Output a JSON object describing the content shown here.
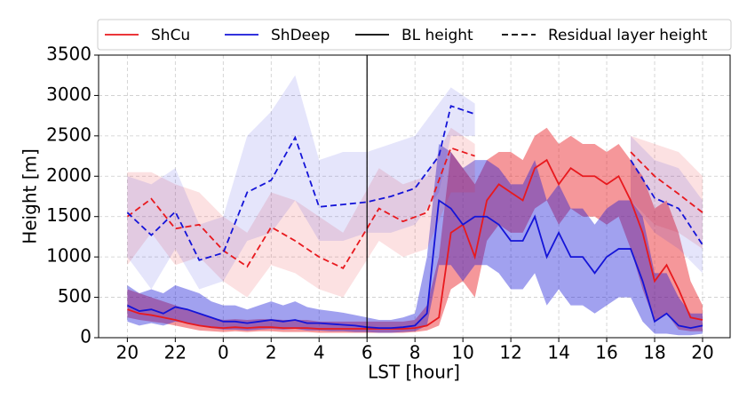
{
  "chart_data": {
    "type": "line",
    "xlabel": "LST [hour]",
    "ylabel": "Height [m]",
    "xlim": [
      18.8,
      45.15
    ],
    "ylim": [
      0,
      3500
    ],
    "xticks": [
      20,
      22,
      {
        "value": 24,
        "label": "0"
      },
      {
        "value": 26,
        "label": "2"
      },
      {
        "value": 28,
        "label": "4"
      },
      {
        "value": 30,
        "label": "6"
      },
      {
        "value": 32,
        "label": "8"
      },
      {
        "value": 34,
        "label": "10"
      },
      {
        "value": 36,
        "label": "12"
      },
      {
        "value": 38,
        "label": "14"
      },
      {
        "value": 40,
        "label": "16"
      },
      {
        "value": 42,
        "label": "18"
      },
      {
        "value": 44,
        "label": "20"
      }
    ],
    "yticks": [
      0,
      500,
      1000,
      1500,
      2000,
      2500,
      3000,
      3500
    ],
    "grid": true,
    "series": [
      {
        "name": "ShCu",
        "color": "#e8191e",
        "dash": false,
        "band_opacity": 0.45,
        "x": [
          20,
          20.5,
          21,
          21.5,
          22,
          22.5,
          23,
          23.5,
          24,
          24.5,
          25,
          25.5,
          26,
          26.5,
          27,
          27.5,
          28,
          28.5,
          29,
          29.5,
          30,
          30.5,
          31,
          31.5,
          32,
          32.5,
          33,
          33.5,
          34,
          34.5,
          35,
          35.5,
          36,
          36.5,
          37,
          37.5,
          38,
          38.5,
          39,
          39.5,
          40,
          40.5,
          41,
          41.5,
          42,
          42.5,
          43,
          43.5,
          44
        ],
        "values": [
          350,
          300,
          280,
          250,
          220,
          180,
          150,
          130,
          120,
          130,
          120,
          130,
          130,
          120,
          120,
          120,
          110,
          110,
          110,
          110,
          110,
          110,
          110,
          110,
          120,
          150,
          250,
          1300,
          1400,
          1000,
          1700,
          1900,
          1800,
          1700,
          2100,
          2200,
          1900,
          2100,
          2000,
          2000,
          1900,
          2000,
          1700,
          1300,
          700,
          900,
          600,
          250,
          220
        ],
        "lower": [
          250,
          220,
          200,
          180,
          150,
          120,
          90,
          80,
          70,
          80,
          70,
          80,
          80,
          70,
          70,
          70,
          60,
          60,
          60,
          60,
          60,
          60,
          60,
          60,
          70,
          90,
          150,
          600,
          700,
          500,
          1200,
          1400,
          1300,
          1300,
          1600,
          1700,
          1400,
          1600,
          1500,
          1500,
          1400,
          1500,
          1100,
          600,
          200,
          300,
          100,
          80,
          80
        ],
        "upper": [
          600,
          550,
          500,
          450,
          400,
          350,
          300,
          250,
          220,
          230,
          220,
          230,
          230,
          220,
          220,
          220,
          200,
          200,
          200,
          200,
          200,
          200,
          200,
          200,
          220,
          400,
          1000,
          2300,
          2100,
          1900,
          2200,
          2300,
          2300,
          2200,
          2500,
          2600,
          2400,
          2500,
          2400,
          2400,
          2300,
          2400,
          2200,
          2000,
          1600,
          1700,
          1300,
          700,
          400
        ]
      },
      {
        "name": "ShDeep",
        "color": "#1414d8",
        "dash": false,
        "band_opacity": 0.4,
        "x": [
          20,
          20.5,
          21,
          21.5,
          22,
          22.5,
          23,
          23.5,
          24,
          24.5,
          25,
          25.5,
          26,
          26.5,
          27,
          27.5,
          28,
          28.5,
          29,
          29.5,
          30,
          30.5,
          31,
          31.5,
          32,
          32.5,
          33,
          33.5,
          34,
          34.5,
          35,
          35.5,
          36,
          36.5,
          37,
          37.5,
          38,
          38.5,
          39,
          39.5,
          40,
          40.5,
          41,
          41.5,
          42,
          42.5,
          43,
          43.5,
          44
        ],
        "values": [
          400,
          330,
          350,
          300,
          380,
          350,
          300,
          250,
          200,
          200,
          180,
          200,
          220,
          200,
          220,
          180,
          180,
          170,
          160,
          150,
          130,
          120,
          120,
          130,
          150,
          300,
          1700,
          1600,
          1400,
          1500,
          1500,
          1400,
          1200,
          1200,
          1500,
          1000,
          1300,
          1000,
          1000,
          800,
          1000,
          1100,
          1100,
          700,
          200,
          300,
          150,
          120,
          150
        ],
        "lower": [
          200,
          150,
          180,
          150,
          200,
          180,
          150,
          120,
          100,
          100,
          90,
          100,
          110,
          100,
          110,
          90,
          90,
          80,
          80,
          70,
          70,
          60,
          60,
          70,
          80,
          150,
          900,
          900,
          700,
          900,
          900,
          800,
          600,
          600,
          800,
          400,
          600,
          400,
          400,
          300,
          400,
          500,
          500,
          200,
          50,
          50,
          30,
          30,
          50
        ],
        "upper": [
          650,
          550,
          600,
          550,
          650,
          600,
          550,
          450,
          400,
          400,
          350,
          400,
          450,
          400,
          450,
          380,
          350,
          330,
          310,
          280,
          250,
          220,
          220,
          250,
          300,
          1000,
          2400,
          2300,
          2100,
          2200,
          2200,
          2100,
          1900,
          1900,
          2200,
          1700,
          1900,
          1600,
          1600,
          1400,
          1600,
          1700,
          1700,
          1500,
          800,
          800,
          500,
          300,
          300
        ]
      },
      {
        "color": "#e8191e",
        "dash": true,
        "band_opacity": 0.13,
        "x": [
          20,
          21,
          22,
          23,
          24,
          25,
          26,
          27,
          28,
          29,
          30.5,
          31.5,
          32.5,
          33.5,
          34.5,
          37.5,
          41,
          42,
          43,
          44
        ],
        "values": [
          1500,
          1720,
          1350,
          1400,
          1080,
          880,
          1370,
          1200,
          1000,
          860,
          1600,
          1440,
          1550,
          2350,
          2250,
          null,
          2300,
          2000,
          1780,
          1550
        ],
        "lower": [
          900,
          1300,
          900,
          1000,
          700,
          500,
          900,
          800,
          600,
          500,
          1200,
          1000,
          1100,
          1800,
          1800,
          null,
          1700,
          1400,
          1300,
          1100
        ],
        "upper": [
          2050,
          2050,
          1900,
          1800,
          1500,
          1300,
          1800,
          1700,
          1500,
          1300,
          2100,
          1900,
          2000,
          2600,
          2400,
          null,
          2500,
          2400,
          2300,
          2000
        ]
      },
      {
        "color": "#1414d8",
        "dash": true,
        "band_opacity": 0.11,
        "x": [
          20,
          21,
          22,
          23,
          24,
          25,
          26,
          27,
          28,
          29,
          30,
          31,
          32,
          33,
          33.5,
          34.5,
          37.5,
          41,
          42,
          43,
          44
        ],
        "values": [
          1550,
          1270,
          1560,
          960,
          1050,
          1800,
          1950,
          2480,
          1620,
          1650,
          1680,
          1750,
          1850,
          2250,
          2870,
          2770,
          null,
          2200,
          1730,
          1600,
          1150
        ],
        "lower": [
          1000,
          600,
          1100,
          600,
          700,
          1200,
          1300,
          1700,
          1200,
          1200,
          1300,
          1300,
          1400,
          1800,
          2500,
          2500,
          null,
          1700,
          1300,
          1100,
          800
        ],
        "upper": [
          2000,
          1900,
          2100,
          1400,
          1500,
          2500,
          2800,
          3250,
          2200,
          2300,
          2300,
          2400,
          2500,
          2900,
          3100,
          2900,
          null,
          2500,
          2200,
          2100,
          1700
        ]
      }
    ],
    "vline": {
      "name": "BL height",
      "x": 30,
      "color": "#000000"
    },
    "dashed_legend": {
      "name": "Residual layer height",
      "color": "#000000"
    }
  }
}
